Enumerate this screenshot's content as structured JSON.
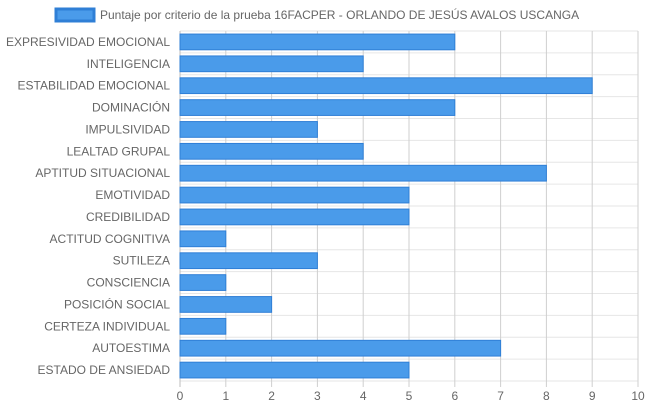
{
  "chart_data": {
    "type": "bar",
    "orientation": "horizontal",
    "categories": [
      "EXPRESIVIDAD EMOCIONAL",
      "INTELIGENCIA",
      "ESTABILIDAD EMOCIONAL",
      "DOMINACIÓN",
      "IMPULSIVIDAD",
      "LEALTAD GRUPAL",
      "APTITUD SITUACIONAL",
      "EMOTIVIDAD",
      "CREDIBILIDAD",
      "ACTITUD COGNITIVA",
      "SUTILEZA",
      "CONSCIENCIA",
      "POSICIÓN SOCIAL",
      "CERTEZA INDIVIDUAL",
      "AUTOESTIMA",
      "ESTADO DE ANSIEDAD"
    ],
    "series": [
      {
        "name": "Puntaje por criterio de la prueba 16FACPER - ORLANDO DE JESÚS AVALOS USCANGA",
        "values": [
          6,
          4,
          9,
          6,
          3,
          4,
          8,
          5,
          5,
          1,
          3,
          1,
          2,
          1,
          7,
          5
        ],
        "color": "#4a9bea",
        "border_color": "#2f7fd6"
      }
    ],
    "xlim": [
      0,
      10
    ],
    "x_ticks": [
      "0",
      "1",
      "2",
      "3",
      "4",
      "5",
      "6",
      "7",
      "8",
      "9",
      "10"
    ],
    "grid": true,
    "legend_position": "top",
    "title": "",
    "xlabel": "",
    "ylabel": ""
  }
}
